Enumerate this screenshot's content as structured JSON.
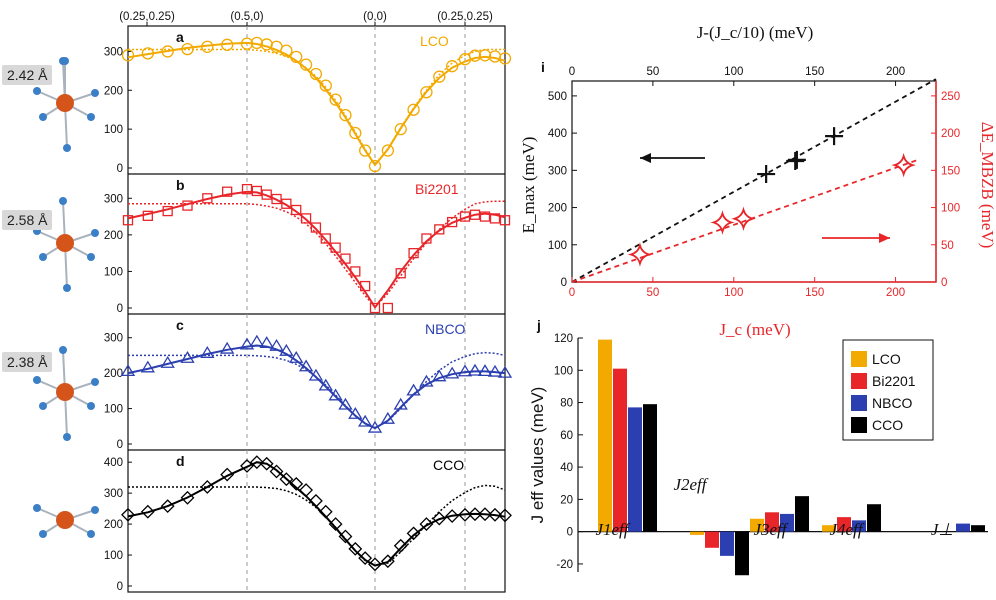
{
  "molecule_labels": [
    "2.42 Å",
    "2.58 Å",
    "2.38 Å"
  ],
  "dispersion_xticks": [
    "(0.25,0.25)",
    "(0.5,0)",
    "(0,0)",
    "(0.25,0.25)"
  ],
  "colors": {
    "LCO": "#f2a900",
    "Bi2201": "#e8262a",
    "NBCO": "#2b3fb0",
    "CCO": "#000000",
    "atom_cu": "#d4541a",
    "atom_o": "#3b7fc6"
  },
  "chart_data": [
    {
      "panel": "a",
      "type": "line",
      "label": "LCO",
      "ylim": [
        0,
        350
      ],
      "yticks": [
        0,
        100,
        200,
        300
      ],
      "x": [
        0,
        0.1,
        0.2,
        0.3,
        0.4,
        0.5,
        0.6,
        0.7,
        0.8,
        0.9,
        1.0,
        1.1,
        1.2,
        1.3,
        1.4,
        1.5,
        1.6,
        1.7,
        1.8,
        1.9,
        2.0,
        2.1,
        2.2,
        2.3,
        2.4,
        2.5,
        2.6,
        2.7,
        2.8,
        2.9,
        3.0
      ],
      "markers_y": [
        290,
        295,
        300,
        306,
        312,
        317,
        320,
        322,
        318,
        312,
        302,
        286,
        266,
        242,
        212,
        176,
        136,
        90,
        45,
        5,
        45,
        100,
        150,
        195,
        235,
        262,
        280,
        289,
        290,
        287,
        282
      ],
      "fit_y": [
        285,
        293,
        301,
        309,
        315,
        320,
        322,
        319,
        313,
        304,
        292,
        276,
        256,
        232,
        202,
        168,
        130,
        88,
        45,
        8,
        48,
        102,
        152,
        196,
        232,
        258,
        274,
        283,
        286,
        283,
        276
      ],
      "dotted_y": [
        305,
        305,
        305,
        305,
        305,
        305,
        305,
        303,
        300,
        295,
        287,
        275,
        258,
        236,
        208,
        174,
        135,
        92,
        48,
        8,
        50,
        104,
        155,
        200,
        240,
        270,
        290,
        300,
        305,
        305,
        305
      ]
    },
    {
      "panel": "b",
      "type": "line",
      "label": "Bi2201",
      "ylim": [
        0,
        350
      ],
      "yticks": [
        0,
        100,
        200,
        300
      ],
      "x": [
        0,
        0.1,
        0.2,
        0.3,
        0.4,
        0.5,
        0.6,
        0.7,
        0.8,
        0.9,
        1.0,
        1.1,
        1.2,
        1.3,
        1.4,
        1.5,
        1.6,
        1.7,
        1.8,
        1.9,
        2.0,
        2.1,
        2.2,
        2.3,
        2.4,
        2.5,
        2.6,
        2.7,
        2.8,
        2.9,
        3.0
      ],
      "markers_y": [
        240,
        252,
        265,
        280,
        300,
        318,
        325,
        320,
        310,
        298,
        285,
        268,
        245,
        220,
        190,
        165,
        135,
        100,
        60,
        0,
        0,
        95,
        150,
        190,
        215,
        235,
        250,
        255,
        250,
        245,
        240
      ],
      "fit_y": [
        245,
        257,
        270,
        284,
        298,
        310,
        318,
        316,
        308,
        296,
        282,
        264,
        242,
        216,
        186,
        154,
        120,
        84,
        44,
        2,
        48,
        100,
        145,
        182,
        212,
        233,
        247,
        255,
        258,
        255,
        248
      ],
      "dotted_y": [
        285,
        285,
        285,
        285,
        285,
        285,
        285,
        283,
        279,
        273,
        263,
        249,
        230,
        206,
        176,
        142,
        106,
        70,
        34,
        2,
        40,
        88,
        135,
        178,
        215,
        246,
        270,
        285,
        290,
        292,
        292
      ]
    },
    {
      "panel": "c",
      "type": "line",
      "label": "NBCO",
      "ylim": [
        0,
        350
      ],
      "yticks": [
        0,
        100,
        200,
        300
      ],
      "x": [
        0,
        0.1,
        0.2,
        0.3,
        0.4,
        0.5,
        0.6,
        0.7,
        0.8,
        0.9,
        1.0,
        1.1,
        1.2,
        1.3,
        1.4,
        1.5,
        1.6,
        1.7,
        1.8,
        1.9,
        2.0,
        2.1,
        2.2,
        2.3,
        2.4,
        2.5,
        2.6,
        2.7,
        2.8,
        2.9,
        3.0
      ],
      "markers_y": [
        205,
        215,
        228,
        242,
        256,
        268,
        280,
        288,
        284,
        276,
        262,
        242,
        218,
        192,
        164,
        136,
        110,
        84,
        62,
        45,
        70,
        110,
        150,
        175,
        190,
        198,
        204,
        206,
        205,
        203,
        200
      ],
      "fit_y": [
        200,
        212,
        226,
        240,
        254,
        266,
        275,
        278,
        275,
        267,
        254,
        236,
        214,
        189,
        162,
        134,
        106,
        80,
        58,
        45,
        66,
        104,
        140,
        168,
        186,
        197,
        203,
        205,
        205,
        203,
        200
      ],
      "dotted_y": [
        250,
        250,
        250,
        250,
        250,
        250,
        250,
        249,
        247,
        243,
        236,
        225,
        210,
        190,
        166,
        138,
        108,
        80,
        58,
        45,
        65,
        100,
        140,
        176,
        208,
        232,
        247,
        255,
        258,
        256,
        250
      ]
    },
    {
      "panel": "d",
      "type": "line",
      "label": "CCO",
      "ylim": [
        0,
        420
      ],
      "yticks": [
        0,
        100,
        200,
        300,
        400
      ],
      "x": [
        0,
        0.1,
        0.2,
        0.3,
        0.4,
        0.5,
        0.6,
        0.7,
        0.8,
        0.9,
        1.0,
        1.1,
        1.2,
        1.3,
        1.4,
        1.5,
        1.6,
        1.7,
        1.8,
        1.9,
        2.0,
        2.1,
        2.2,
        2.3,
        2.4,
        2.5,
        2.6,
        2.7,
        2.8,
        2.9,
        3.0
      ],
      "markers_y": [
        230,
        240,
        258,
        285,
        320,
        360,
        388,
        400,
        395,
        370,
        345,
        330,
        310,
        275,
        240,
        200,
        160,
        120,
        90,
        70,
        80,
        130,
        170,
        200,
        218,
        226,
        230,
        232,
        232,
        230,
        228
      ],
      "fit_y": [
        225,
        238,
        258,
        286,
        320,
        356,
        385,
        400,
        395,
        374,
        346,
        318,
        290,
        258,
        224,
        188,
        150,
        114,
        84,
        66,
        78,
        122,
        164,
        196,
        216,
        227,
        232,
        233,
        232,
        229,
        224
      ],
      "dotted_y": [
        320,
        320,
        320,
        320,
        320,
        320,
        320,
        320,
        318,
        315,
        308,
        296,
        278,
        254,
        224,
        190,
        152,
        114,
        82,
        66,
        74,
        110,
        154,
        198,
        240,
        276,
        302,
        318,
        325,
        322,
        310
      ]
    },
    {
      "panel": "i",
      "type": "scatter",
      "xlabel": "J_c (meV)",
      "ylabel": "E_max (meV)",
      "top_xlabel": "J-(J_c/10) (meV)",
      "right_ylabel": "ΔE_MBZB (meV)",
      "xlim": [
        0,
        225
      ],
      "ylim": [
        0,
        540
      ],
      "right_ylim": [
        0,
        270
      ],
      "xticks": [
        0,
        50,
        100,
        150,
        200
      ],
      "yticks": [
        0,
        100,
        200,
        300,
        400,
        500
      ],
      "right_yticks": [
        0,
        50,
        100,
        150,
        200,
        250
      ],
      "top_xlim": [
        0,
        225
      ],
      "top_xticks": [
        0,
        50,
        100,
        150,
        200
      ],
      "black_points": [
        {
          "x": 120,
          "y": 290
        },
        {
          "x": 138,
          "y": 325
        },
        {
          "x": 139,
          "y": 328
        },
        {
          "x": 162,
          "y": 392
        }
      ],
      "black_fit": {
        "x": [
          0,
          225
        ],
        "y": [
          0,
          545
        ]
      },
      "red_points": [
        {
          "x": 42,
          "y": 37
        },
        {
          "x": 93,
          "y": 80
        },
        {
          "x": 106,
          "y": 85
        },
        {
          "x": 205,
          "y": 157
        }
      ],
      "red_fit": {
        "x": [
          0,
          215
        ],
        "y": [
          0,
          165
        ]
      }
    },
    {
      "panel": "j",
      "type": "bar",
      "categories": [
        "J1eff",
        "J2eff",
        "J3eff",
        "J4eff",
        "J⊥"
      ],
      "ylabel": "J eff values (meV)",
      "ylim": [
        -25,
        120
      ],
      "yticks": [
        -20,
        0,
        20,
        40,
        60,
        80,
        100,
        120
      ],
      "series": [
        {
          "name": "LCO",
          "values": [
            119,
            -2,
            8,
            4,
            0
          ]
        },
        {
          "name": "Bi2201",
          "values": [
            101,
            -10,
            12,
            9,
            0
          ]
        },
        {
          "name": "NBCO",
          "values": [
            77,
            -15,
            11,
            7,
            5
          ]
        },
        {
          "name": "CCO",
          "values": [
            79,
            -27,
            22,
            17,
            4
          ]
        }
      ]
    }
  ]
}
